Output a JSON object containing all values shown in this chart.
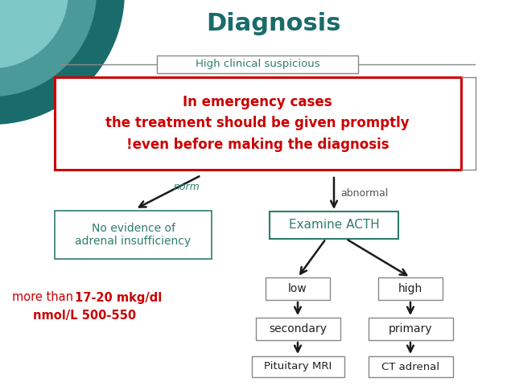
{
  "title": "Diagnosis",
  "title_color": "#1a6b6b",
  "title_fontsize": 22,
  "bg_color": "#ffffff",
  "emergency_text": "In emergency cases\nthe treatment should be given promptly\n!even before making the diagnosis",
  "emergency_color": "#cc0000",
  "emergency_box_color": "#cc0000",
  "emergency_fill": "#ffffff",
  "high_clinical_text": "High clinical suspicious",
  "high_clinical_color": "#2e7d6b",
  "normal_label": "norm",
  "abnormal_label": "abnormal",
  "no_evidence_text": "No evidence of\nadrenal insufficiency",
  "examine_acth_text": "Examine ACTH",
  "low_text": "low",
  "high_text": "high",
  "secondary_text": "secondary",
  "primary_text": "primary",
  "pituitary_text": "Pituitary MRI",
  "ct_text": "CT adrenal",
  "box_edge_color": "#2e7d6b",
  "box_text_color": "#2e7d6b",
  "more_than_plain": "more than ",
  "more_than_bold": "17-20 mkg/dl",
  "nmol_bold": "nmol/L 500-550",
  "more_than_color": "#cc0000",
  "teal_circle_dark": "#1a6b6b",
  "teal_circle_mid": "#4a9a9a",
  "teal_circle_light": "#7ec8c8",
  "arrow_color": "#1a1a1a",
  "line_color": "#888888",
  "norm_color": "#2e7d6b",
  "abnormal_color": "#555555",
  "bracket_color": "#888888"
}
